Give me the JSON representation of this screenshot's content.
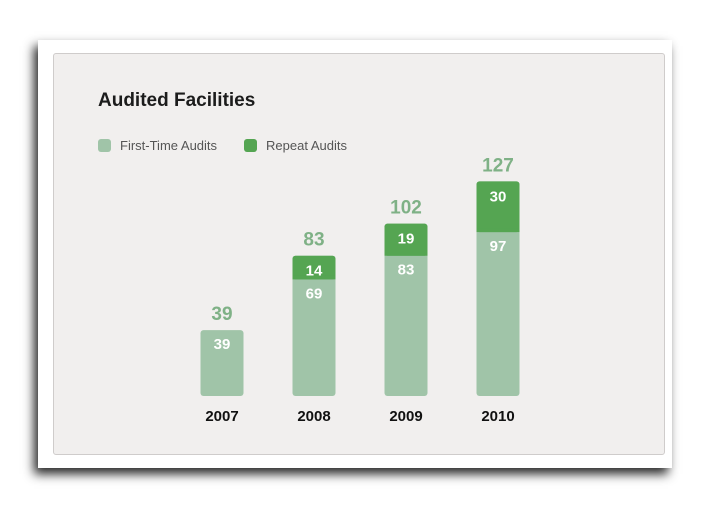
{
  "colors": {
    "first_time": "#a0c4a8",
    "repeat": "#55a552",
    "total_label": "#7fb186",
    "inner_label": "#ffffff",
    "axis_label": "#111111"
  },
  "chart_data": {
    "type": "bar",
    "stacked": true,
    "title": "Audited Facilities",
    "categories": [
      "2007",
      "2008",
      "2009",
      "2010"
    ],
    "series": [
      {
        "name": "First-Time Audits",
        "values": [
          39,
          69,
          83,
          97
        ]
      },
      {
        "name": "Repeat Audits",
        "values": [
          null,
          14,
          19,
          30
        ]
      }
    ],
    "totals": [
      39,
      83,
      102,
      127
    ],
    "legend": "top-left",
    "grid": false
  }
}
